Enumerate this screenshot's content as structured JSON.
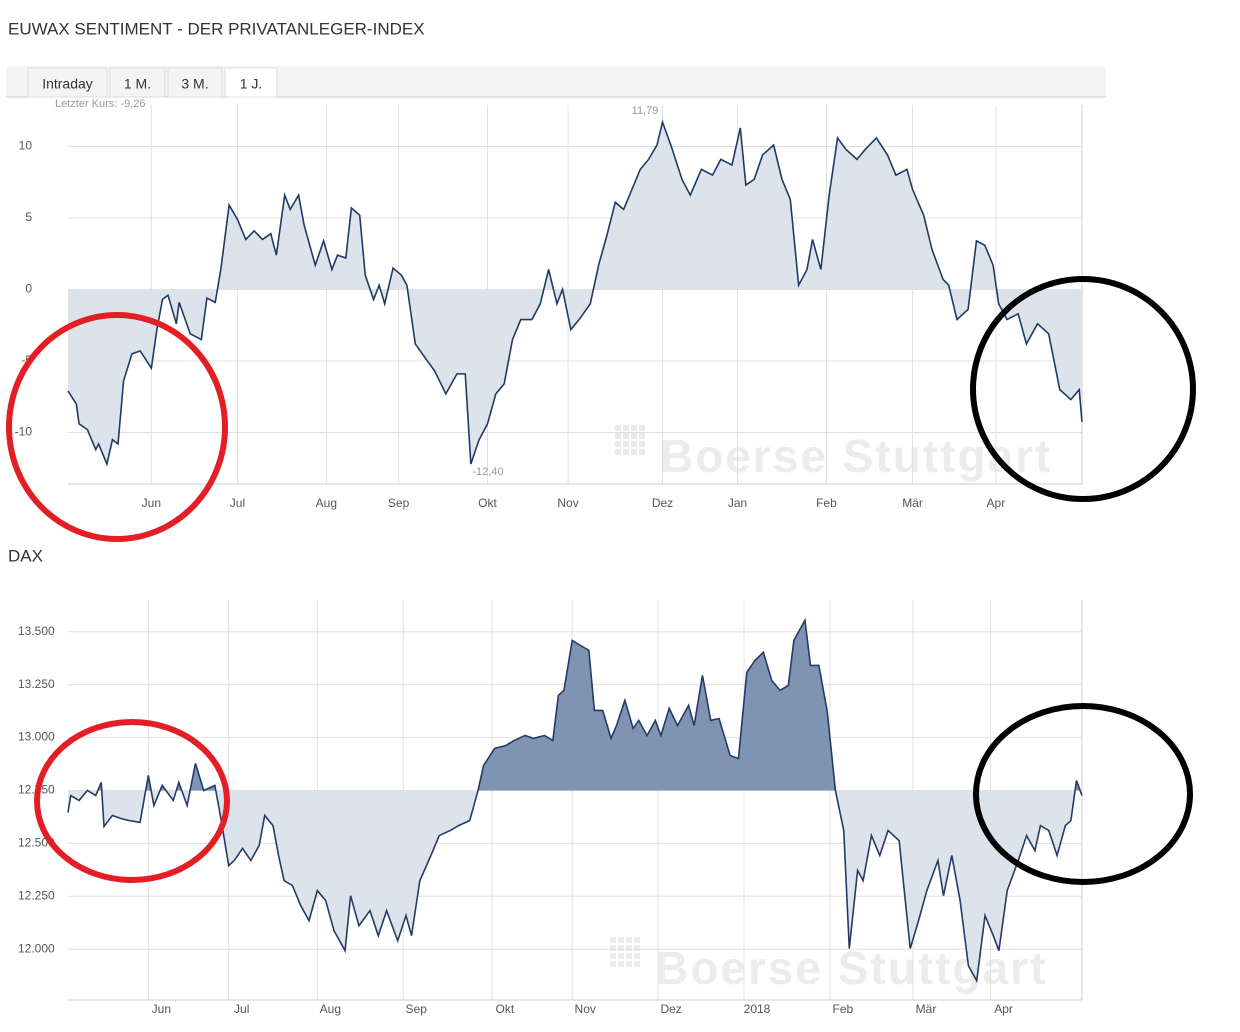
{
  "tabs": [
    {
      "label": "Intraday"
    },
    {
      "label": "1 M."
    },
    {
      "label": "3 M."
    },
    {
      "label": "1 J.",
      "active": true
    }
  ],
  "chart_data": [
    {
      "type": "area",
      "title": "EUWAX SENTIMENT - DER PRIVATANLEGER-INDEX",
      "watermark": "Boerse Stuttgart",
      "annotations": [
        {
          "text": "Letzter Kurs: -9,26"
        },
        {
          "text": "11,79"
        },
        {
          "text": "-12,40"
        }
      ],
      "xlim": [
        0,
        365
      ],
      "ylim": [
        -13.6,
        12.9
      ],
      "yticks": [
        10,
        5,
        0,
        -5,
        -10
      ],
      "xticks": [
        {
          "value": 30,
          "label": "Jun"
        },
        {
          "value": 61,
          "label": "Jul"
        },
        {
          "value": 93,
          "label": "Aug"
        },
        {
          "value": 119,
          "label": "Sep"
        },
        {
          "value": 151,
          "label": "Okt"
        },
        {
          "value": 180,
          "label": "Nov"
        },
        {
          "value": 214,
          "label": "Dez"
        },
        {
          "value": 241,
          "label": "Jan"
        },
        {
          "value": 273,
          "label": "Feb"
        },
        {
          "value": 304,
          "label": "Mär"
        },
        {
          "value": 334,
          "label": "Apr"
        }
      ],
      "grid": true,
      "fill_baseline": 0,
      "line_color": "#1f3a66",
      "fill_above_color": "#dde3eb",
      "fill_below_color": "#dde3eb",
      "x": [
        0,
        3,
        4,
        7,
        10,
        11,
        14,
        16,
        18,
        20,
        23,
        26,
        30,
        32,
        34,
        36,
        39,
        40,
        44,
        48,
        50,
        53,
        55,
        58,
        61,
        64,
        67,
        70,
        73,
        75,
        78,
        80,
        83,
        85,
        89,
        92,
        95,
        97,
        100,
        102,
        105,
        107,
        110,
        112,
        114,
        117,
        120,
        122,
        125,
        129,
        132,
        136,
        140,
        143,
        145,
        148,
        151,
        154,
        157,
        160,
        163,
        167,
        170,
        173,
        176,
        178,
        181,
        184,
        188,
        191,
        194,
        197,
        200,
        203,
        206,
        209,
        212,
        214,
        217,
        221,
        224,
        228,
        232,
        235,
        239,
        242,
        244,
        247,
        250,
        254,
        257,
        260,
        263,
        266,
        268,
        271,
        274,
        277,
        280,
        284,
        287,
        291,
        295,
        298,
        302,
        304,
        308,
        311,
        315,
        317,
        320,
        324,
        327,
        330,
        333,
        335,
        338,
        342,
        345,
        349,
        353,
        357,
        361,
        364,
        365
      ],
      "values": [
        -7.1,
        -8.0,
        -9.4,
        -9.8,
        -11.2,
        -10.8,
        -12.2,
        -10.5,
        -10.8,
        -6.4,
        -4.5,
        -4.3,
        -5.5,
        -2.8,
        -0.7,
        -0.4,
        -2.4,
        -0.9,
        -3.1,
        -3.5,
        -0.6,
        -0.9,
        1.4,
        5.9,
        4.9,
        3.5,
        4.1,
        3.5,
        3.9,
        2.4,
        6.6,
        5.6,
        6.6,
        4.5,
        1.7,
        3.4,
        1.4,
        2.4,
        2.2,
        5.7,
        5.2,
        1.0,
        -0.7,
        0.3,
        -1.0,
        1.5,
        1.0,
        0.3,
        -3.8,
        -4.9,
        -5.7,
        -7.3,
        -5.9,
        -5.9,
        -12.2,
        -10.5,
        -9.4,
        -7.3,
        -6.6,
        -3.5,
        -2.1,
        -2.1,
        -1.0,
        1.4,
        -1.0,
        0.0,
        -2.8,
        -2.1,
        -1.0,
        1.7,
        3.8,
        6.1,
        5.6,
        7.0,
        8.4,
        9.1,
        10.1,
        11.7,
        10.1,
        7.7,
        6.6,
        8.4,
        8.0,
        9.1,
        8.7,
        11.3,
        7.3,
        7.7,
        9.4,
        10.1,
        7.7,
        6.3,
        0.3,
        1.4,
        3.5,
        1.4,
        6.6,
        10.6,
        9.8,
        9.1,
        9.8,
        10.6,
        9.4,
        8.0,
        8.4,
        7.0,
        5.2,
        2.8,
        0.7,
        0.3,
        -2.1,
        -1.4,
        3.4,
        3.1,
        1.7,
        -1.0,
        -2.1,
        -1.7,
        -3.8,
        -2.4,
        -3.1,
        -7.0,
        -7.7,
        -7.0,
        -9.26
      ]
    },
    {
      "type": "area",
      "title": "DAX",
      "watermark": "Boerse Stuttgart",
      "xlim": [
        0,
        366
      ],
      "ylim": [
        11760,
        13650
      ],
      "yticks": [
        {
          "value": 13500,
          "label": "13.500"
        },
        {
          "value": 13250,
          "label": "13.250"
        },
        {
          "value": 13000,
          "label": "13.000"
        },
        {
          "value": 12750,
          "label": "12.750"
        },
        {
          "value": 12500,
          "label": "12.500"
        },
        {
          "value": 12250,
          "label": "12.250"
        },
        {
          "value": 12000,
          "label": "12.000"
        }
      ],
      "xticks": [
        {
          "value": 29,
          "label": "Jun"
        },
        {
          "value": 58,
          "label": "Jul"
        },
        {
          "value": 90,
          "label": "Aug"
        },
        {
          "value": 121,
          "label": "Sep"
        },
        {
          "value": 153,
          "label": "Okt"
        },
        {
          "value": 182,
          "label": "Nov"
        },
        {
          "value": 213,
          "label": "Dez"
        },
        {
          "value": 244,
          "label": "2018"
        },
        {
          "value": 275,
          "label": "Feb"
        },
        {
          "value": 305,
          "label": "Mär"
        },
        {
          "value": 333,
          "label": "Apr"
        }
      ],
      "grid": true,
      "fill_baseline": 12750,
      "line_color": "#233b66",
      "fill_above_color": "#7f93b3",
      "fill_below_color": "#dde3eb",
      "x": [
        0,
        1,
        4,
        7,
        10,
        12,
        13,
        16,
        19,
        22,
        26,
        29,
        31,
        34,
        38,
        40,
        43,
        46,
        49,
        53,
        55,
        58,
        60,
        63,
        66,
        69,
        71,
        74,
        76,
        78,
        81,
        84,
        87,
        90,
        93,
        96,
        100,
        102,
        105,
        109,
        112,
        115,
        119,
        122,
        124,
        127,
        131,
        134,
        138,
        141,
        145,
        148,
        150,
        154,
        158,
        161,
        165,
        168,
        172,
        175,
        177,
        179,
        182,
        185,
        188,
        190,
        193,
        196,
        198,
        201,
        204,
        206,
        209,
        212,
        214,
        217,
        220,
        224,
        226,
        229,
        232,
        235,
        239,
        242,
        245,
        248,
        251,
        254,
        257,
        260,
        262,
        266,
        268,
        271,
        274,
        277,
        280,
        282,
        285,
        287,
        290,
        293,
        296,
        300,
        304,
        307,
        310,
        314,
        316,
        319,
        322,
        325,
        328,
        331,
        334,
        336,
        339,
        343,
        346,
        349,
        351,
        354,
        357,
        360,
        362,
        364,
        366
      ],
      "values": [
        12646,
        12726,
        12703,
        12750,
        12726,
        12788,
        12580,
        12632,
        12618,
        12608,
        12599,
        12821,
        12679,
        12774,
        12703,
        12788,
        12679,
        12878,
        12750,
        12774,
        12632,
        12395,
        12419,
        12476,
        12419,
        12490,
        12632,
        12584,
        12443,
        12324,
        12301,
        12206,
        12135,
        12277,
        12230,
        12088,
        11993,
        12253,
        12111,
        12182,
        12064,
        12182,
        12040,
        12159,
        12064,
        12324,
        12443,
        12537,
        12561,
        12584,
        12608,
        12750,
        12868,
        12949,
        12962,
        12986,
        13010,
        12996,
        13010,
        12986,
        13199,
        13223,
        13459,
        13435,
        13412,
        13128,
        13128,
        12996,
        13057,
        13176,
        13043,
        13081,
        13010,
        13081,
        13010,
        13138,
        13057,
        13152,
        13057,
        13294,
        13081,
        13090,
        12915,
        12901,
        13308,
        13365,
        13403,
        13270,
        13223,
        13246,
        13459,
        13554,
        13341,
        13341,
        13128,
        12750,
        12561,
        12003,
        12372,
        12324,
        12537,
        12443,
        12561,
        12513,
        12003,
        12135,
        12277,
        12419,
        12253,
        12443,
        12230,
        11922,
        11851,
        12159,
        12064,
        11993,
        12277,
        12419,
        12537,
        12466,
        12584,
        12561,
        12443,
        12584,
        12608,
        12797,
        12726
      ]
    }
  ]
}
